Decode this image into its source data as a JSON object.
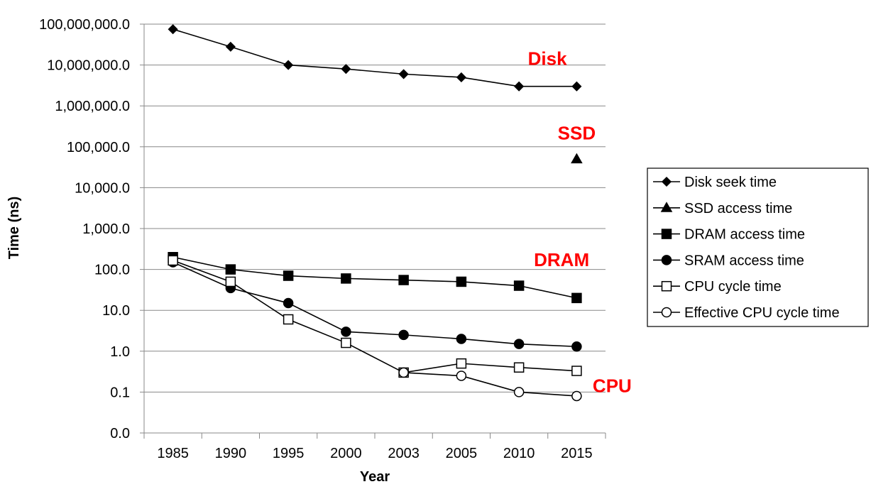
{
  "chart_data": {
    "type": "line",
    "y_scale": "log",
    "title": "",
    "xlabel": "Year",
    "ylabel": "Time (ns)",
    "categories": [
      "1985",
      "1990",
      "1995",
      "2000",
      "2003",
      "2005",
      "2010",
      "2015"
    ],
    "ylim": [
      0.01,
      100000000
    ],
    "y_tick_values": [
      0.01,
      0.1,
      1,
      10,
      100,
      1000,
      10000,
      100000,
      1000000,
      10000000,
      100000000
    ],
    "y_tick_labels": [
      "0.0",
      "0.1",
      "1.0",
      "10.0",
      "100.0",
      "1,000.0",
      "10,000.0",
      "100,000.0",
      "1,000,000.0",
      "10,000,000.0",
      "100,000,000.0"
    ],
    "grid": "horizontal",
    "legend_position": "right",
    "series": [
      {
        "name": "Disk seek time",
        "marker": "diamond",
        "fill": "#000000",
        "values": [
          75000000,
          28000000,
          10000000,
          8000000,
          6000000,
          5000000,
          3000000,
          3000000
        ]
      },
      {
        "name": "SSD access time",
        "marker": "triangle",
        "fill": "#000000",
        "values": [
          null,
          null,
          null,
          null,
          null,
          null,
          null,
          50000
        ]
      },
      {
        "name": "DRAM access time",
        "marker": "square",
        "fill": "#000000",
        "values": [
          200,
          100,
          70,
          60,
          55,
          50,
          40,
          20
        ]
      },
      {
        "name": "SRAM access time",
        "marker": "circle",
        "fill": "#000000",
        "values": [
          150,
          35,
          15,
          3,
          2.5,
          2,
          1.5,
          1.3
        ]
      },
      {
        "name": "CPU cycle time",
        "marker": "square",
        "fill": "#ffffff",
        "values": [
          166,
          50,
          6,
          1.6,
          0.3,
          0.5,
          0.4,
          0.33
        ]
      },
      {
        "name": "Effective CPU cycle time",
        "marker": "circle",
        "fill": "#ffffff",
        "values": [
          null,
          null,
          null,
          null,
          0.3,
          0.25,
          0.1,
          0.08
        ]
      }
    ],
    "annotations": [
      {
        "text": "Disk",
        "near_category": "2010",
        "near_value": 10000000,
        "color": "#ff0000"
      },
      {
        "text": "SSD",
        "near_category": "2015",
        "near_value": 150000,
        "color": "#ff0000"
      },
      {
        "text": "DRAM",
        "near_category": "2010",
        "near_value": 120,
        "color": "#ff0000"
      },
      {
        "text": "CPU",
        "near_category": "2015",
        "near_value": 0.1,
        "color": "#ff0000"
      }
    ]
  },
  "colors": {
    "line": "#000000",
    "grid": "#888888",
    "annotation": "#ff0000",
    "background": "#ffffff"
  }
}
